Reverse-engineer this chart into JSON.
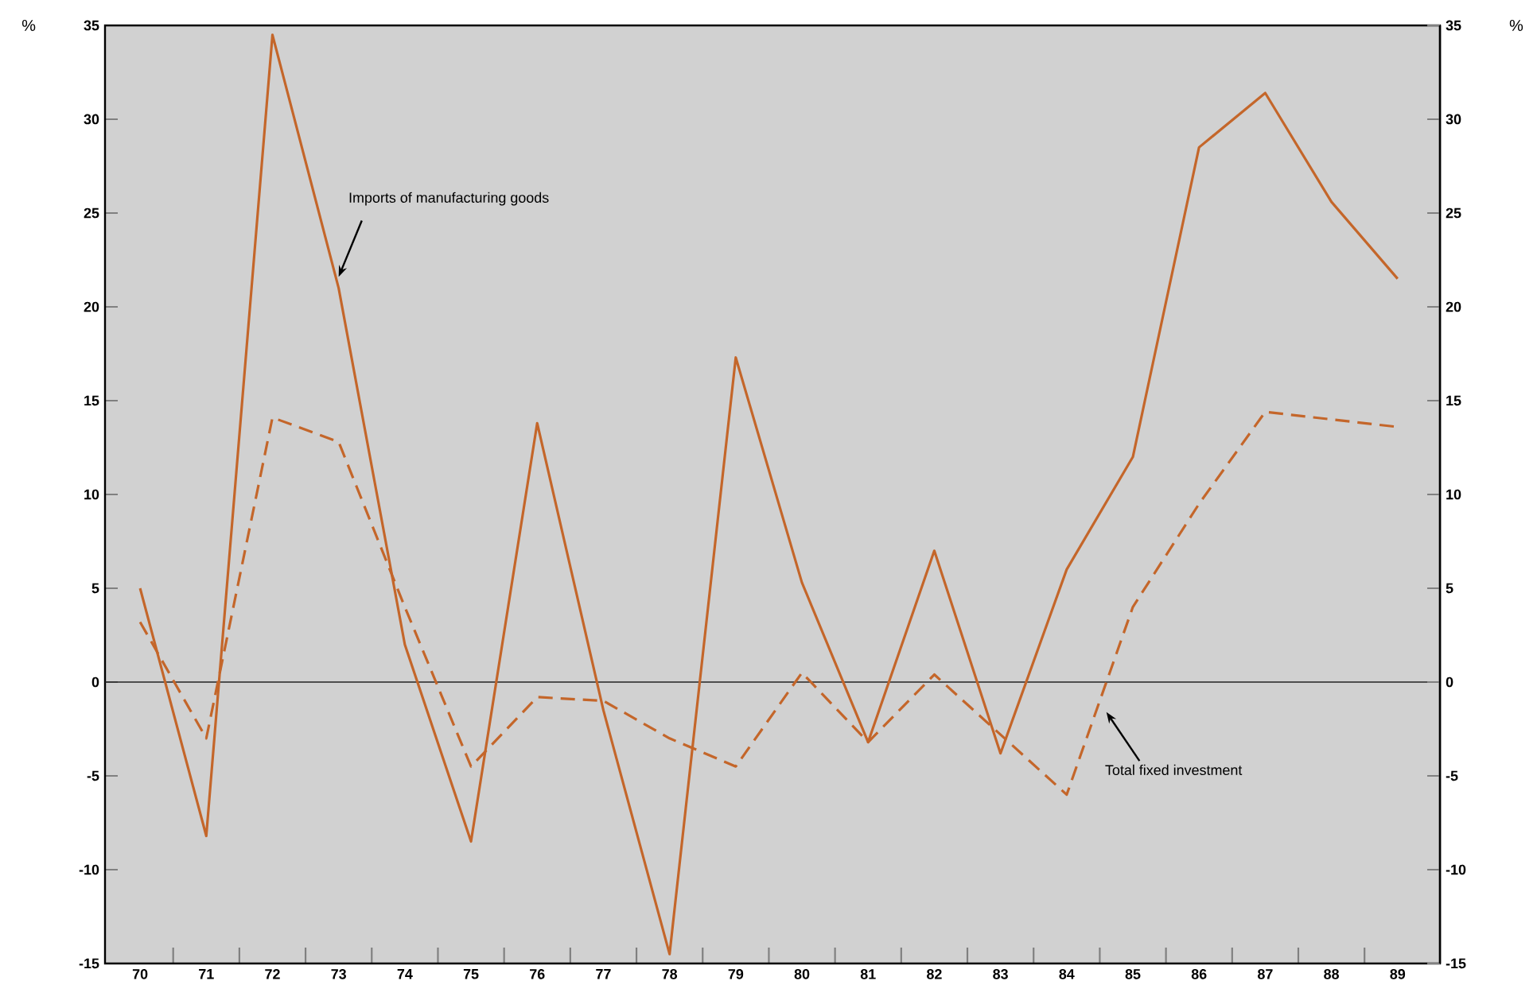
{
  "chart_data": {
    "type": "line",
    "categories": [
      "70",
      "71",
      "72",
      "73",
      "74",
      "75",
      "76",
      "77",
      "78",
      "79",
      "80",
      "81",
      "82",
      "83",
      "84",
      "85",
      "86",
      "87",
      "88",
      "89"
    ],
    "series": [
      {
        "name": "Imports of manufacturing goods",
        "color": "#c4662a",
        "line_style": "solid",
        "values": [
          5,
          -8.2,
          34.5,
          21,
          2,
          -8.5,
          13.8,
          -1.5,
          -14.5,
          17.3,
          5.3,
          -3.2,
          7,
          -3.8,
          6,
          12,
          28.5,
          31.4,
          25.6,
          21.5
        ]
      },
      {
        "name": "Total fixed investment",
        "color": "#c4662a",
        "line_style": "dashed",
        "values": [
          3.2,
          -3,
          14.1,
          12.8,
          4,
          -4.5,
          -0.8,
          -1,
          -3,
          -4.5,
          0.5,
          -3.2,
          0.4,
          -2.8,
          -6,
          4,
          9.5,
          14.4,
          14,
          13.6
        ]
      }
    ],
    "ylabel": "%",
    "y2label": "%",
    "ylim": [
      -15,
      35
    ],
    "yticks": [
      -15,
      -10,
      -5,
      0,
      5,
      10,
      15,
      20,
      25,
      30,
      35
    ],
    "y2lim": [
      -15,
      35
    ],
    "y2ticks": [
      -15,
      -10,
      -5,
      0,
      5,
      10,
      15,
      20,
      25,
      30,
      35
    ],
    "ref_lines": [
      {
        "axis": "y",
        "value": 0,
        "color": "#222222"
      }
    ],
    "grid": false,
    "legend": false,
    "marker": "none"
  }
}
